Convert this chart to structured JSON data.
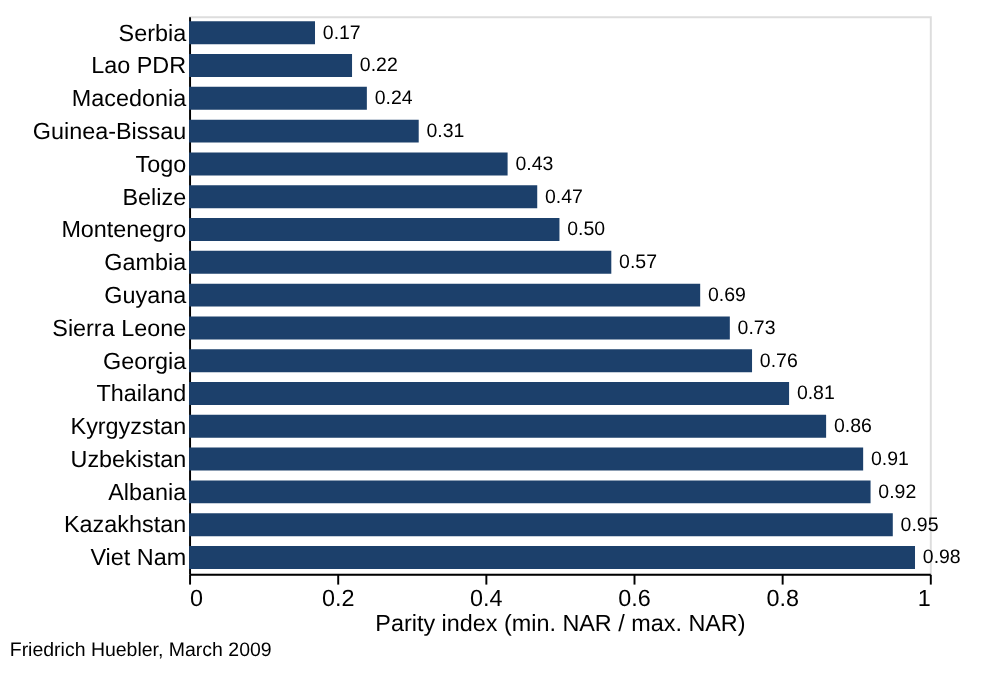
{
  "chart_data": {
    "type": "bar",
    "orientation": "horizontal",
    "categories": [
      "Serbia",
      "Lao PDR",
      "Macedonia",
      "Guinea-Bissau",
      "Togo",
      "Belize",
      "Montenegro",
      "Gambia",
      "Guyana",
      "Sierra Leone",
      "Georgia",
      "Thailand",
      "Kyrgyzstan",
      "Uzbekistan",
      "Albania",
      "Kazakhstan",
      "Viet Nam"
    ],
    "values": [
      0.17,
      0.22,
      0.24,
      0.31,
      0.43,
      0.47,
      0.5,
      0.57,
      0.69,
      0.73,
      0.76,
      0.81,
      0.86,
      0.91,
      0.92,
      0.95,
      0.98
    ],
    "value_labels": [
      "0.17",
      "0.22",
      "0.24",
      "0.31",
      "0.43",
      "0.47",
      "0.50",
      "0.57",
      "0.69",
      "0.73",
      "0.76",
      "0.81",
      "0.86",
      "0.91",
      "0.92",
      "0.95",
      "0.98"
    ],
    "color": "#1c406b",
    "xlim": [
      0,
      1
    ],
    "xticks": [
      0,
      0.2,
      0.4,
      0.6,
      0.8,
      1
    ],
    "xlabel": "Parity index (min. NAR / max. NAR)",
    "annotations": [
      "Friedrich Huebler, March 2009"
    ]
  }
}
